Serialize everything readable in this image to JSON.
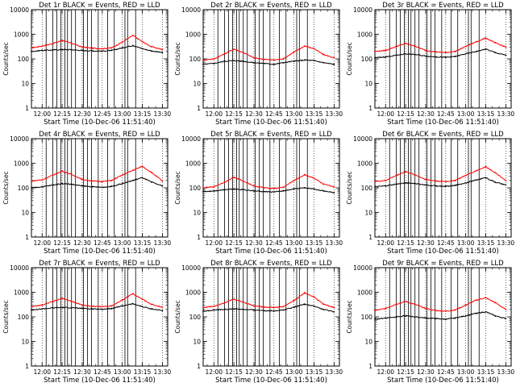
{
  "colors": {
    "background": "#ffffff",
    "events": "#000000",
    "lld": "#ff0000"
  },
  "chart_data": [
    {
      "type": "line",
      "title": "Det 1r BLACK = Events, RED = LLD",
      "xlabel": "Start Time (10-Dec-06 11:51:40)",
      "ylabel": "Counts/sec",
      "xlim": [
        "11:52",
        "13:34"
      ],
      "ylim": [
        1,
        10000
      ],
      "yscale": "log",
      "xticks": [
        "12:00",
        "12:15",
        "12:30",
        "12:45",
        "13:00",
        "13:15",
        "13:30"
      ],
      "yticks": [
        "1",
        "10",
        "100",
        "1000",
        "10000"
      ],
      "x": [
        "11:52",
        "12:00",
        "12:08",
        "12:15",
        "12:22",
        "12:30",
        "12:38",
        "12:45",
        "12:52",
        "13:00",
        "13:08",
        "13:15",
        "13:22",
        "13:30"
      ],
      "series": [
        {
          "name": "LLD",
          "color": "#ff0000",
          "values": [
            280,
            330,
            420,
            560,
            430,
            300,
            270,
            260,
            280,
            480,
            900,
            500,
            310,
            240
          ]
        },
        {
          "name": "Events",
          "color": "#000000",
          "values": [
            200,
            220,
            230,
            240,
            235,
            220,
            210,
            205,
            220,
            280,
            350,
            260,
            210,
            180
          ]
        }
      ]
    },
    {
      "type": "line",
      "title": "Det 2r BLACK = Events, RED = LLD",
      "xlabel": "Start Time (10-Dec-06 11:51:40)",
      "ylabel": "Counts/sec",
      "xlim": [
        "11:52",
        "13:34"
      ],
      "ylim": [
        1,
        10000
      ],
      "yscale": "log",
      "xticks": [
        "12:00",
        "12:15",
        "12:30",
        "12:45",
        "13:00",
        "13:15",
        "13:30"
      ],
      "yticks": [
        "1",
        "10",
        "100",
        "1000",
        "10000"
      ],
      "x": [
        "11:52",
        "12:00",
        "12:08",
        "12:15",
        "12:22",
        "12:30",
        "12:38",
        "12:45",
        "12:52",
        "13:00",
        "13:08",
        "13:15",
        "13:22",
        "13:30"
      ],
      "series": [
        {
          "name": "LLD",
          "color": "#ff0000",
          "values": [
            90,
            100,
            160,
            250,
            180,
            110,
            95,
            90,
            100,
            190,
            330,
            260,
            150,
            110
          ]
        },
        {
          "name": "Events",
          "color": "#000000",
          "values": [
            60,
            65,
            80,
            85,
            80,
            70,
            65,
            60,
            70,
            80,
            90,
            85,
            70,
            60
          ]
        }
      ]
    },
    {
      "type": "line",
      "title": "Det 3r BLACK = Events, RED = LLD",
      "xlabel": "Start Time (10-Dec-06 11:51:40)",
      "ylabel": "Counts/sec",
      "xlim": [
        "11:52",
        "13:34"
      ],
      "ylim": [
        1,
        10000
      ],
      "yscale": "log",
      "xticks": [
        "12:00",
        "12:15",
        "12:30",
        "12:45",
        "13:00",
        "13:15",
        "13:30"
      ],
      "yticks": [
        "1",
        "10",
        "100",
        "1000",
        "10000"
      ],
      "x": [
        "11:52",
        "12:00",
        "12:08",
        "12:15",
        "12:22",
        "12:30",
        "12:38",
        "12:45",
        "12:52",
        "13:00",
        "13:08",
        "13:15",
        "13:22",
        "13:30"
      ],
      "series": [
        {
          "name": "LLD",
          "color": "#ff0000",
          "values": [
            200,
            220,
            320,
            420,
            330,
            220,
            190,
            180,
            200,
            320,
            500,
            700,
            450,
            300
          ]
        },
        {
          "name": "Events",
          "color": "#000000",
          "values": [
            110,
            120,
            140,
            160,
            150,
            130,
            120,
            115,
            125,
            160,
            200,
            250,
            180,
            140
          ]
        }
      ]
    },
    {
      "type": "line",
      "title": "Det 4r BLACK = Events, RED = LLD",
      "xlabel": "Start Time (10-Dec-06 11:51:40)",
      "ylabel": "Counts/sec",
      "xlim": [
        "11:52",
        "13:34"
      ],
      "ylim": [
        1,
        10000
      ],
      "yscale": "log",
      "xticks": [
        "12:00",
        "12:15",
        "12:30",
        "12:45",
        "13:00",
        "13:15",
        "13:30"
      ],
      "yticks": [
        "1",
        "10",
        "100",
        "1000",
        "10000"
      ],
      "x": [
        "11:52",
        "12:00",
        "12:08",
        "12:15",
        "12:22",
        "12:30",
        "12:38",
        "12:45",
        "12:52",
        "13:00",
        "13:08",
        "13:15",
        "13:22",
        "13:30"
      ],
      "series": [
        {
          "name": "LLD",
          "color": "#ff0000",
          "values": [
            190,
            210,
            330,
            480,
            350,
            220,
            190,
            180,
            200,
            330,
            520,
            750,
            420,
            190
          ]
        },
        {
          "name": "Events",
          "color": "#000000",
          "values": [
            100,
            110,
            130,
            150,
            140,
            120,
            110,
            105,
            115,
            150,
            200,
            260,
            170,
            120
          ]
        }
      ]
    },
    {
      "type": "line",
      "title": "Det 5r BLACK = Events, RED = LLD",
      "xlabel": "Start Time (10-Dec-06 11:51:40)",
      "ylabel": "Counts/sec",
      "xlim": [
        "11:52",
        "13:34"
      ],
      "ylim": [
        1,
        10000
      ],
      "yscale": "log",
      "xticks": [
        "12:00",
        "12:15",
        "12:30",
        "12:45",
        "13:00",
        "13:15",
        "13:30"
      ],
      "yticks": [
        "1",
        "10",
        "100",
        "1000",
        "10000"
      ],
      "x": [
        "11:52",
        "12:00",
        "12:08",
        "12:15",
        "12:22",
        "12:30",
        "12:38",
        "12:45",
        "12:52",
        "13:00",
        "13:08",
        "13:15",
        "13:22",
        "13:30"
      ],
      "series": [
        {
          "name": "LLD",
          "color": "#ff0000",
          "values": [
            100,
            110,
            170,
            270,
            190,
            120,
            100,
            95,
            105,
            200,
            340,
            250,
            140,
            110
          ]
        },
        {
          "name": "Events",
          "color": "#000000",
          "values": [
            70,
            75,
            85,
            90,
            85,
            75,
            70,
            68,
            75,
            90,
            100,
            90,
            75,
            65
          ]
        }
      ]
    },
    {
      "type": "line",
      "title": "Det 6r BLACK = Events, RED = LLD",
      "xlabel": "Start Time (10-Dec-06 11:51:40)",
      "ylabel": "Counts/sec",
      "xlim": [
        "11:52",
        "13:34"
      ],
      "ylim": [
        1,
        10000
      ],
      "yscale": "log",
      "xticks": [
        "12:00",
        "12:15",
        "12:30",
        "12:45",
        "13:00",
        "13:15",
        "13:30"
      ],
      "yticks": [
        "1",
        "10",
        "100",
        "1000",
        "10000"
      ],
      "x": [
        "11:52",
        "12:00",
        "12:08",
        "12:15",
        "12:22",
        "12:30",
        "12:38",
        "12:45",
        "12:52",
        "13:00",
        "13:08",
        "13:15",
        "13:22",
        "13:30"
      ],
      "series": [
        {
          "name": "LLD",
          "color": "#ff0000",
          "values": [
            180,
            200,
            320,
            460,
            340,
            220,
            190,
            180,
            200,
            320,
            500,
            720,
            420,
            200
          ]
        },
        {
          "name": "Events",
          "color": "#000000",
          "values": [
            110,
            120,
            140,
            160,
            150,
            130,
            120,
            115,
            125,
            160,
            210,
            260,
            170,
            130
          ]
        }
      ]
    },
    {
      "type": "line",
      "title": "Det 7r BLACK = Events, RED = LLD",
      "xlabel": "Start Time (10-Dec-06 11:51:40)",
      "ylabel": "Counts/sec",
      "xlim": [
        "11:52",
        "13:34"
      ],
      "ylim": [
        1,
        10000
      ],
      "yscale": "log",
      "xticks": [
        "12:00",
        "12:15",
        "12:30",
        "12:45",
        "13:00",
        "13:15",
        "13:30"
      ],
      "yticks": [
        "1",
        "10",
        "100",
        "1000",
        "10000"
      ],
      "x": [
        "11:52",
        "12:00",
        "12:08",
        "12:15",
        "12:22",
        "12:30",
        "12:38",
        "12:45",
        "12:52",
        "13:00",
        "13:08",
        "13:15",
        "13:22",
        "13:30"
      ],
      "series": [
        {
          "name": "LLD",
          "color": "#ff0000",
          "values": [
            260,
            300,
            420,
            560,
            430,
            300,
            270,
            260,
            280,
            480,
            880,
            520,
            320,
            250
          ]
        },
        {
          "name": "Events",
          "color": "#000000",
          "values": [
            190,
            210,
            230,
            240,
            235,
            220,
            210,
            205,
            220,
            280,
            340,
            260,
            210,
            180
          ]
        }
      ]
    },
    {
      "type": "line",
      "title": "Det 8r BLACK = Events, RED = LLD",
      "xlabel": "Start Time (10-Dec-06 11:51:40)",
      "ylabel": "Counts/sec",
      "xlim": [
        "11:52",
        "13:34"
      ],
      "ylim": [
        1,
        10000
      ],
      "yscale": "log",
      "xticks": [
        "12:00",
        "12:15",
        "12:30",
        "12:45",
        "13:00",
        "13:15",
        "13:30"
      ],
      "yticks": [
        "1",
        "10",
        "100",
        "1000",
        "10000"
      ],
      "x": [
        "11:52",
        "12:00",
        "12:08",
        "12:15",
        "12:22",
        "12:30",
        "12:38",
        "12:45",
        "12:52",
        "13:00",
        "13:08",
        "13:15",
        "13:22",
        "13:30"
      ],
      "series": [
        {
          "name": "LLD",
          "color": "#ff0000",
          "values": [
            240,
            270,
            380,
            520,
            400,
            280,
            250,
            240,
            260,
            460,
            950,
            640,
            330,
            240
          ]
        },
        {
          "name": "Events",
          "color": "#000000",
          "values": [
            170,
            190,
            200,
            210,
            200,
            190,
            180,
            175,
            190,
            250,
            330,
            270,
            200,
            160
          ]
        }
      ]
    },
    {
      "type": "line",
      "title": "Det 9r BLACK = Events, RED = LLD",
      "xlabel": "Start Time (10-Dec-06 11:51:40)",
      "ylabel": "Counts/sec",
      "xlim": [
        "11:52",
        "13:34"
      ],
      "ylim": [
        1,
        10000
      ],
      "yscale": "log",
      "xticks": [
        "12:00",
        "12:15",
        "12:30",
        "12:45",
        "13:00",
        "13:15",
        "13:30"
      ],
      "yticks": [
        "1",
        "10",
        "100",
        "1000",
        "10000"
      ],
      "x": [
        "11:52",
        "12:00",
        "12:08",
        "12:15",
        "12:22",
        "12:30",
        "12:38",
        "12:45",
        "12:52",
        "13:00",
        "13:08",
        "13:15",
        "13:22",
        "13:30"
      ],
      "series": [
        {
          "name": "LLD",
          "color": "#ff0000",
          "values": [
            180,
            220,
            330,
            420,
            320,
            220,
            180,
            170,
            190,
            300,
            480,
            600,
            380,
            200
          ]
        },
        {
          "name": "Events",
          "color": "#000000",
          "values": [
            80,
            90,
            100,
            110,
            100,
            90,
            85,
            80,
            90,
            110,
            140,
            160,
            110,
            85
          ]
        }
      ]
    }
  ]
}
